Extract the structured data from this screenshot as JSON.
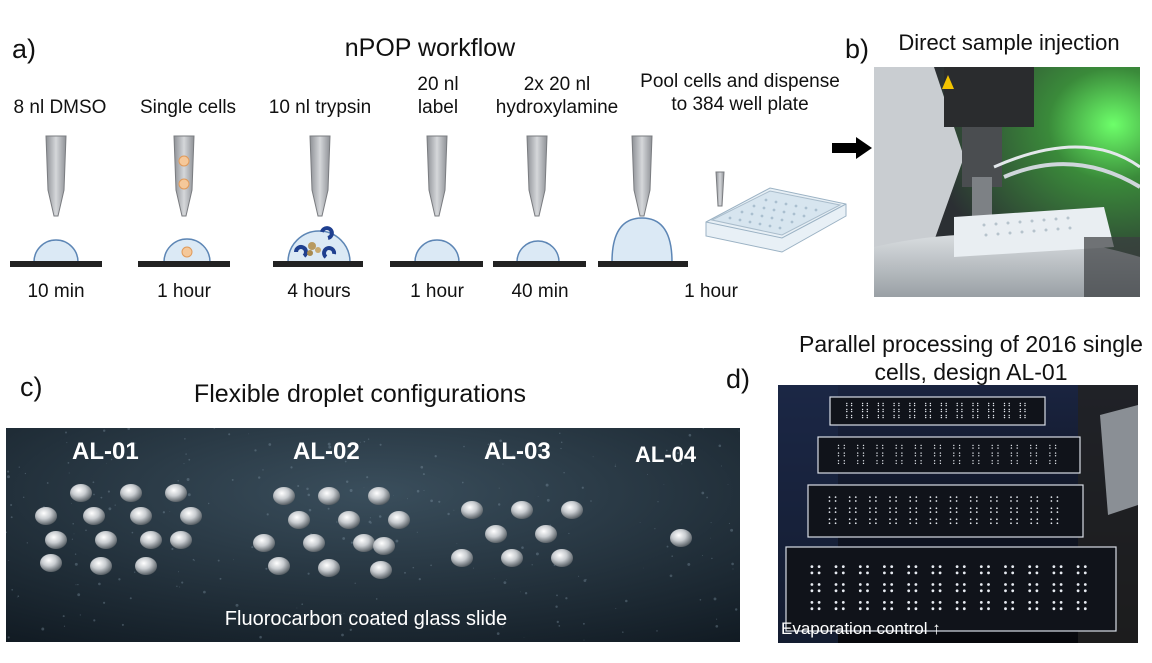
{
  "panel_a": {
    "label": "a)",
    "title": "nPOP workflow",
    "steps": [
      {
        "top": "8 nl DMSO",
        "bottom": "10 min"
      },
      {
        "top": "Single cells",
        "bottom": "1 hour"
      },
      {
        "top": "10 nl trypsin",
        "bottom": "4 hours"
      },
      {
        "top": "20 nl\nlabel",
        "bottom": "1 hour"
      },
      {
        "top": "2x 20 nl\nhydroxylamine",
        "bottom": "40 min"
      },
      {
        "top": "Pool cells and dispense\nto 384 well plate",
        "bottom": "1 hour"
      }
    ]
  },
  "panel_b": {
    "label": "b)",
    "title": "Direct sample injection"
  },
  "panel_c": {
    "label": "c)",
    "title": "Flexible droplet configurations",
    "designs": [
      "AL-01",
      "AL-02",
      "AL-03",
      "AL-04"
    ],
    "caption": "Fluorocarbon coated glass slide"
  },
  "panel_d": {
    "label": "d)",
    "title": "Parallel processing of 2016 single\ncells, design AL-01",
    "caption": "Evaporation control ↑"
  },
  "colors": {
    "droplet_fill": "#dbe9f5",
    "droplet_stroke": "#5d86b5",
    "tip_fill": "#b7b9bc",
    "cell_fill": "#f5c89a",
    "trypsin_blue": "#1f3f8f"
  }
}
